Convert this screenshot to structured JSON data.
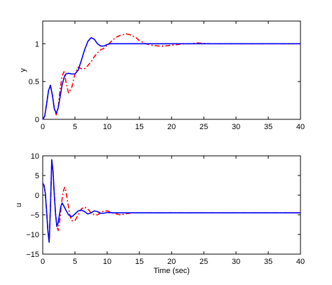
{
  "chart_data": [
    {
      "type": "line",
      "title": "",
      "xlabel": "",
      "ylabel": "y",
      "xlim": [
        0,
        40
      ],
      "ylim": [
        0,
        1.3
      ],
      "xticks": [
        "0",
        "5",
        "10",
        "15",
        "20",
        "25",
        "30",
        "35",
        "40"
      ],
      "yticks": [
        "0",
        "0.5",
        "1"
      ],
      "ytick_values": [
        0,
        0.5,
        1
      ],
      "grid": false,
      "series": [
        {
          "color": "#0000ff",
          "style": "solid",
          "x": [
            0,
            0.3,
            0.6,
            0.9,
            1.2,
            1.5,
            1.8,
            2.1,
            2.4,
            2.7,
            3.0,
            3.3,
            3.6,
            4.0,
            4.5,
            5.0,
            5.5,
            6.0,
            6.5,
            7.0,
            7.5,
            8.0,
            8.5,
            9.0,
            9.5,
            10.0,
            10.5,
            11.0,
            11.5,
            12.0,
            13,
            14,
            16,
            18,
            20,
            25,
            30,
            35,
            40
          ],
          "y": [
            0,
            0.04,
            0.2,
            0.38,
            0.45,
            0.32,
            0.14,
            0.08,
            0.15,
            0.3,
            0.45,
            0.55,
            0.6,
            0.61,
            0.6,
            0.6,
            0.65,
            0.78,
            0.92,
            1.03,
            1.08,
            1.06,
            1.0,
            0.97,
            0.97,
            0.99,
            1.0,
            1.0,
            1.0,
            1.0,
            1.0,
            1.0,
            1.0,
            1.0,
            1.0,
            1.0,
            1.0,
            1.0,
            1.0
          ]
        },
        {
          "color": "#ff0000",
          "style": "dashdot",
          "x": [
            0,
            0.3,
            0.6,
            0.9,
            1.2,
            1.5,
            1.8,
            2.1,
            2.4,
            2.7,
            3.0,
            3.3,
            3.6,
            4.0,
            4.5,
            5.0,
            5.5,
            6.0,
            6.5,
            7.0,
            7.5,
            8.0,
            8.5,
            9.0,
            9.5,
            10.0,
            10.5,
            11.0,
            11.5,
            12.0,
            12.5,
            13.0,
            13.5,
            14.0,
            14.5,
            15.0,
            15.5,
            16.0,
            17,
            18,
            19,
            20,
            21,
            22,
            23,
            24,
            26,
            28,
            30,
            35,
            40
          ],
          "y": [
            0,
            0.04,
            0.2,
            0.38,
            0.45,
            0.32,
            0.14,
            0.06,
            0.15,
            0.4,
            0.57,
            0.63,
            0.5,
            0.35,
            0.42,
            0.6,
            0.69,
            0.67,
            0.67,
            0.71,
            0.76,
            0.83,
            0.88,
            0.92,
            0.94,
            0.98,
            1.02,
            1.06,
            1.09,
            1.11,
            1.12,
            1.13,
            1.12,
            1.1,
            1.08,
            1.04,
            1.02,
            1.0,
            0.98,
            0.97,
            0.97,
            0.98,
            0.99,
            1.0,
            1.0,
            1.01,
            1.0,
            1.0,
            1.0,
            1.0,
            1.0
          ]
        }
      ]
    },
    {
      "type": "line",
      "title": "",
      "xlabel": "Time (sec)",
      "ylabel": "u",
      "xlim": [
        0,
        40
      ],
      "ylim": [
        -15,
        10
      ],
      "xticks": [
        "0",
        "5",
        "10",
        "15",
        "20",
        "25",
        "30",
        "35",
        "40"
      ],
      "yticks": [
        "10",
        "5",
        "0",
        "−5",
        "−10",
        "−15"
      ],
      "ytick_values": [
        10,
        5,
        0,
        -5,
        -10,
        -15
      ],
      "grid": false,
      "series": [
        {
          "color": "#0000ff",
          "style": "solid",
          "x": [
            0,
            0.2,
            0.4,
            0.6,
            0.8,
            1.0,
            1.2,
            1.4,
            1.6,
            1.8,
            2.0,
            2.2,
            2.4,
            2.6,
            2.8,
            3.0,
            3.2,
            3.5,
            4.0,
            4.5,
            5.0,
            5.5,
            6.0,
            6.5,
            7.0,
            7.5,
            8.0,
            8.5,
            9.0,
            9.5,
            10.0,
            11,
            12,
            14,
            16,
            20,
            25,
            30,
            35,
            40
          ],
          "y": [
            3,
            2.5,
            0.5,
            -4,
            -9,
            -12,
            -3,
            9,
            6,
            0,
            -5,
            -8,
            -7,
            -5,
            -3,
            -2,
            -2.5,
            -3.5,
            -5,
            -5.5,
            -4.8,
            -4,
            -3.8,
            -4.2,
            -4.8,
            -4.5,
            -4.0,
            -4.2,
            -4.6,
            -4.6,
            -4.4,
            -4.5,
            -4.5,
            -4.5,
            -4.5,
            -4.5,
            -4.5,
            -4.5,
            -4.5,
            -4.5
          ]
        },
        {
          "color": "#ff0000",
          "style": "dashdot",
          "x": [
            0,
            0.2,
            0.4,
            0.6,
            0.8,
            1.0,
            1.2,
            1.4,
            1.6,
            1.8,
            2.0,
            2.2,
            2.4,
            2.6,
            2.8,
            3.0,
            3.2,
            3.4,
            3.6,
            3.8,
            4.0,
            4.2,
            4.5,
            5.0,
            5.5,
            6.0,
            6.5,
            7.0,
            7.5,
            8.0,
            8.5,
            9.0,
            9.5,
            10.0,
            10.5,
            11.0,
            11.5,
            12.0,
            12.5,
            13.0,
            14,
            16,
            18,
            20,
            25,
            30,
            35,
            40
          ],
          "y": [
            3,
            2.5,
            0.5,
            -4,
            -9,
            -12,
            -3,
            9,
            6,
            0,
            -5,
            -8,
            -9,
            -7,
            -4,
            -1,
            1,
            2,
            1,
            -1,
            -3,
            -5,
            -6.5,
            -6.5,
            -5,
            -3.5,
            -3,
            -3.5,
            -4.5,
            -5,
            -5,
            -4.5,
            -4,
            -4,
            -4.3,
            -4.6,
            -4.8,
            -5,
            -4.9,
            -4.7,
            -4.5,
            -4.5,
            -4.5,
            -4.5,
            -4.5,
            -4.5,
            -4.5,
            -4.5
          ]
        }
      ]
    }
  ]
}
